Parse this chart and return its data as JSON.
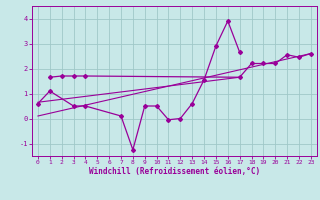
{
  "bg_color": "#c8e8e8",
  "grid_color": "#a0c8c8",
  "line_color": "#990099",
  "xlabel": "Windchill (Refroidissement éolien,°C)",
  "xlim": [
    -0.5,
    23.5
  ],
  "ylim": [
    -1.5,
    4.5
  ],
  "yticks": [
    -1,
    0,
    1,
    2,
    3,
    4
  ],
  "xticks": [
    0,
    1,
    2,
    3,
    4,
    5,
    6,
    7,
    8,
    9,
    10,
    11,
    12,
    13,
    14,
    15,
    16,
    17,
    18,
    19,
    20,
    21,
    22,
    23
  ],
  "s1_x": [
    0,
    1,
    3,
    4,
    7,
    8,
    9,
    10,
    11,
    12,
    13,
    14,
    15,
    16,
    17
  ],
  "s1_y": [
    0.6,
    1.1,
    0.5,
    0.5,
    0.1,
    -1.25,
    0.5,
    0.5,
    -0.05,
    0.0,
    0.6,
    1.55,
    2.9,
    3.9,
    2.65
  ],
  "s2_x": [
    1,
    2,
    3,
    4,
    17,
    18,
    19,
    20,
    21,
    22,
    23
  ],
  "s2_y": [
    1.65,
    1.7,
    1.7,
    1.7,
    1.65,
    2.2,
    2.2,
    2.2,
    2.55,
    2.45,
    2.6
  ],
  "trend1_x": [
    0,
    17
  ],
  "trend1_y": [
    0.65,
    1.65
  ],
  "trend2_x": [
    0,
    23
  ],
  "trend2_y": [
    0.1,
    2.6
  ],
  "ms": 2.0
}
